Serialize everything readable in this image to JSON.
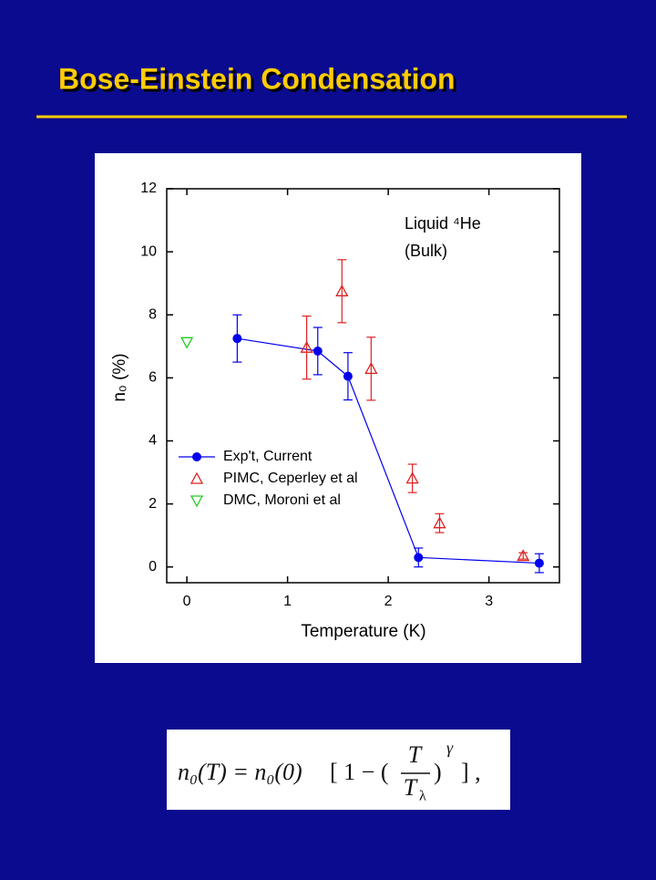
{
  "slide_title": "Bose-Einstein Condensation",
  "chart_data": {
    "type": "scatter",
    "annotation": [
      "Liquid ⁴He",
      "(Bulk)"
    ],
    "xlabel": "Temperature (K)",
    "ylabel": "n₀ (%)",
    "xlim": [
      -0.2,
      3.7
    ],
    "xticks": [
      0,
      1,
      2,
      3
    ],
    "ylim": [
      -0.5,
      12
    ],
    "yticks": [
      0,
      2,
      4,
      6,
      8,
      10,
      12
    ],
    "legend": "left",
    "series": [
      {
        "name": "Exp't, Current",
        "color": "#0000ee",
        "marker": "circle",
        "line": true,
        "x": [
          0.5,
          1.3,
          1.6,
          2.3,
          3.5
        ],
        "values": [
          7.25,
          6.85,
          6.05,
          0.3,
          0.12
        ],
        "errors": [
          0.75,
          0.75,
          0.75,
          0.3,
          0.3
        ]
      },
      {
        "name": "PIMC, Ceperley et al",
        "color": "#dd2222",
        "marker": "triangle-up",
        "line": false,
        "x": [
          1.19,
          1.54,
          1.83,
          2.24,
          2.51,
          3.34
        ],
        "values": [
          6.96,
          8.75,
          6.29,
          2.81,
          1.39,
          0.35
        ],
        "errors": [
          1.0,
          1.0,
          1.0,
          0.45,
          0.3,
          0.1
        ]
      },
      {
        "name": "DMC, Moroni et al",
        "color": "#22cc22",
        "marker": "triangle-down",
        "line": false,
        "x": [
          0
        ],
        "values": [
          7.13
        ]
      }
    ]
  },
  "formula": {
    "left": "n₀(T) = n₀(0)",
    "mid": "[ 1 − (",
    "num": "T",
    "den": "T",
    "den_sub": "λ",
    "right": ")",
    "exp": "γ",
    "end": "] ,"
  }
}
